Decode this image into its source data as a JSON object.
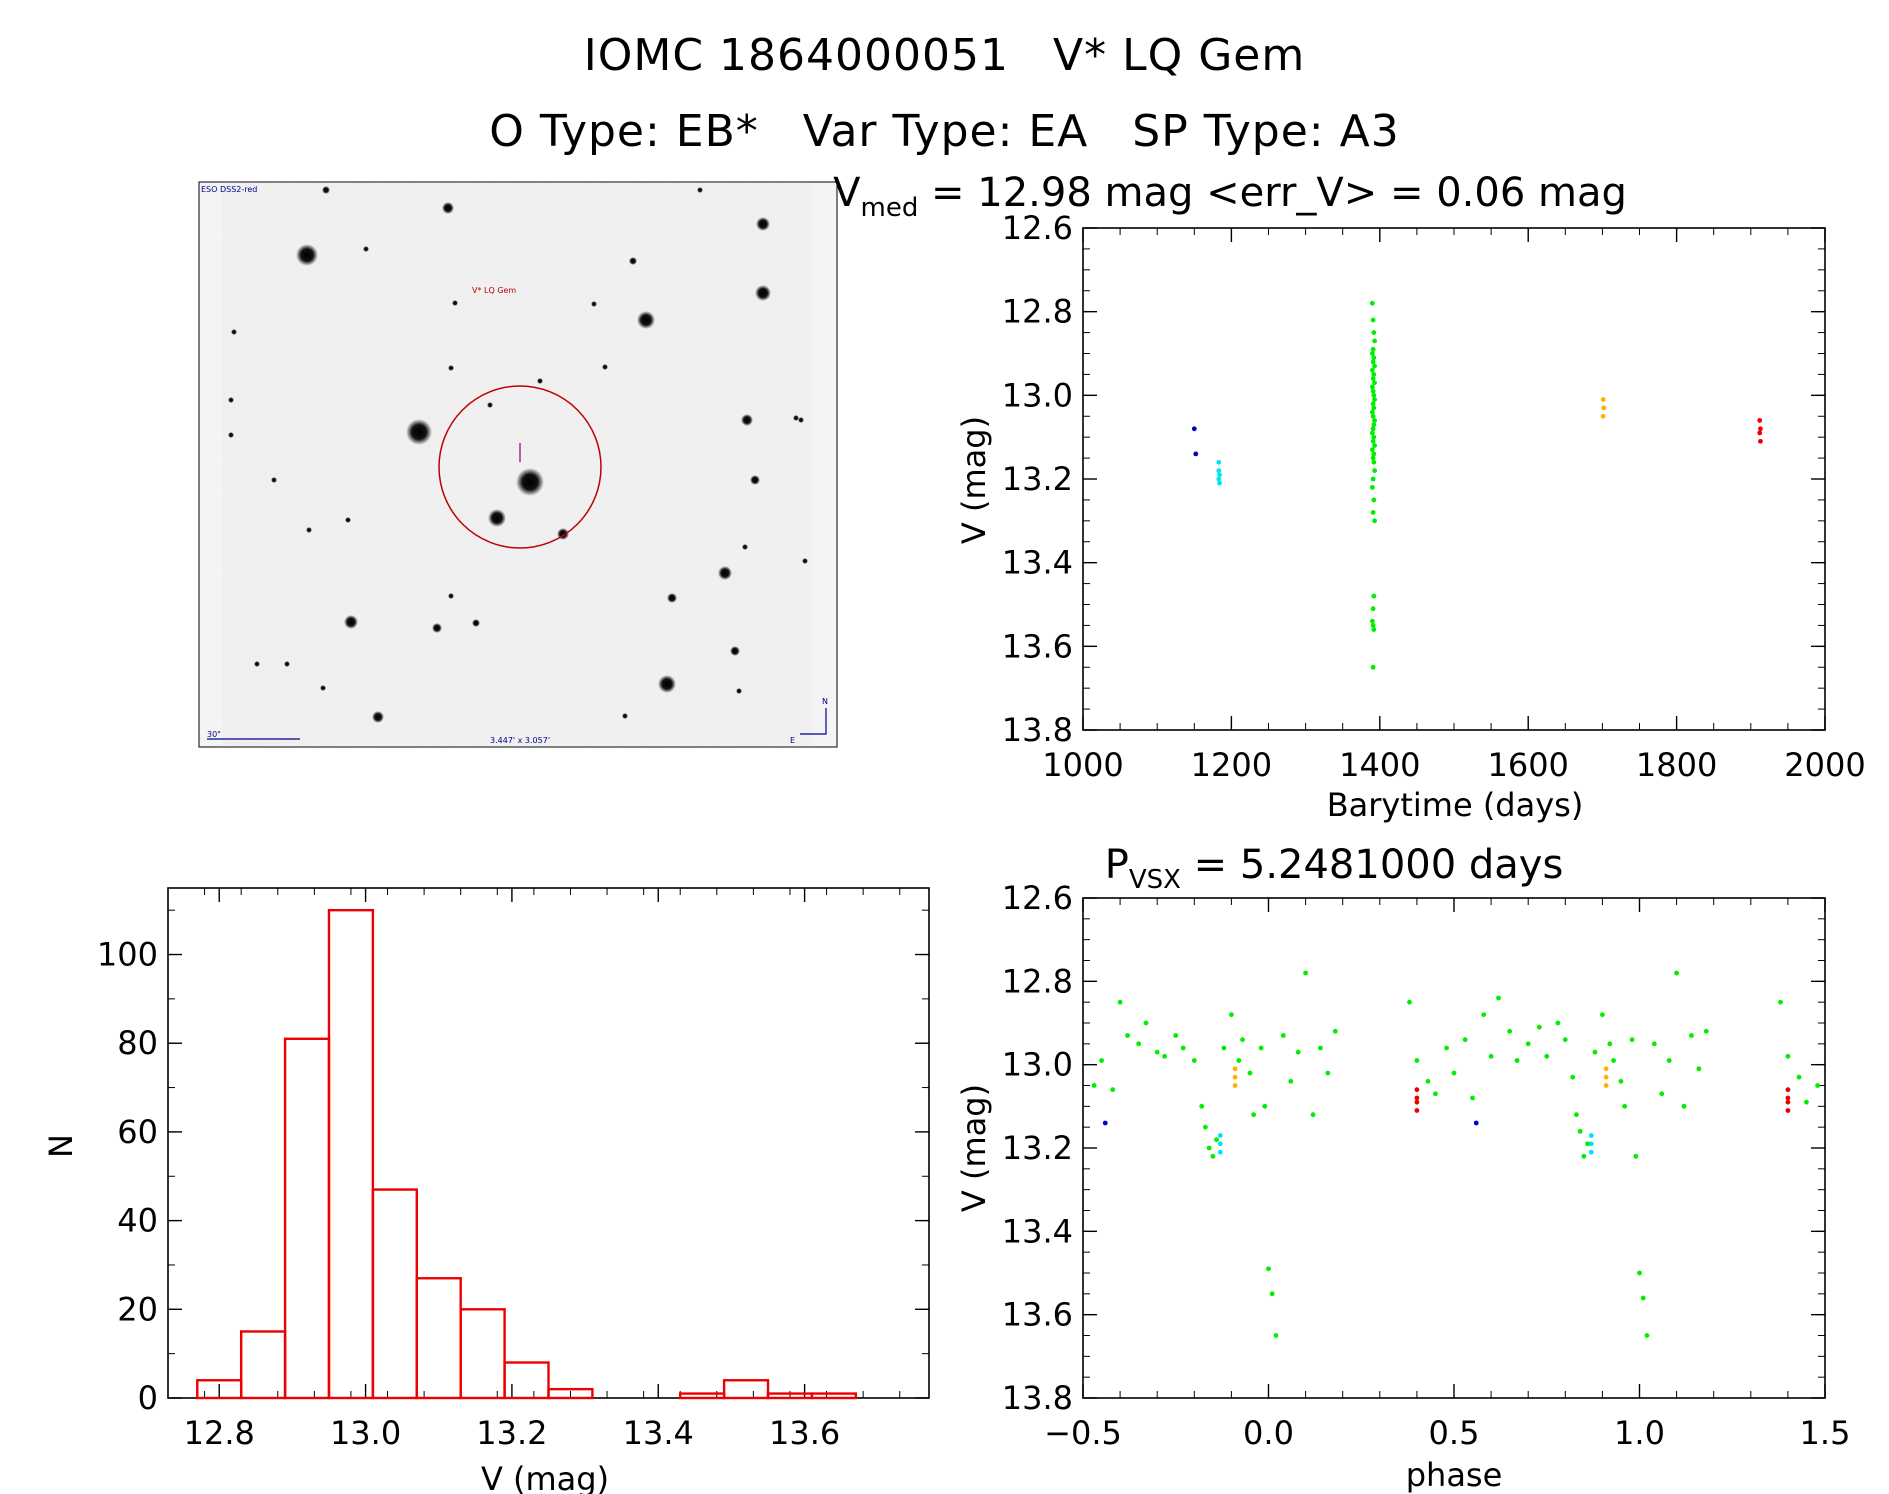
{
  "header": {
    "object_id": "IOMC 1864000051",
    "star_name": "V* LQ Gem",
    "o_type": "O Type: EB*",
    "var_type": "Var Type: EA",
    "sp_type": "SP Type: A3"
  },
  "finder_chart": {
    "survey": "ESO DSS2-red",
    "target_label": "V* LQ Gem",
    "scale_label": "30\"",
    "field_size": "3.447' x 3.057'",
    "north": "N",
    "east": "E",
    "colors": {
      "circle": "#c00000",
      "target_label": "#c00000",
      "annotations": "#00008b"
    }
  },
  "light_curve": {
    "title_main": "V",
    "title_sub": "med",
    "title_rest": " = 12.98 mag <err_V> = 0.06 mag",
    "xlabel": "Barytime (days)",
    "ylabel": "V (mag)"
  },
  "phase_plot": {
    "title_main": "P",
    "title_sub": "VSX",
    "title_rest": " = 5.2481000 days",
    "xlabel": "phase",
    "ylabel": "V (mag)"
  },
  "histogram": {
    "xlabel": "V (mag)",
    "ylabel": "N"
  },
  "chart_data": [
    {
      "type": "scatter",
      "name": "light_curve",
      "xlim": [
        1000,
        2000
      ],
      "ylim": [
        13.8,
        12.6
      ],
      "xticks": [
        1000,
        1200,
        1400,
        1600,
        1800,
        2000
      ],
      "xtick_labels": [
        "1000",
        "1200",
        "1400",
        "1600",
        "1800",
        "2000"
      ],
      "yticks": [
        12.6,
        12.8,
        13.0,
        13.2,
        13.4,
        13.6,
        13.8
      ],
      "ytick_labels": [
        "12.6",
        "12.8",
        "13.0",
        "13.2",
        "13.4",
        "13.6",
        "13.8"
      ],
      "series": [
        {
          "name": "season1",
          "color": "#0000cc",
          "x": [
            1150,
            1152
          ],
          "y": [
            13.08,
            13.14
          ]
        },
        {
          "name": "season2",
          "color": "#00e5ee",
          "x": [
            1183,
            1183,
            1184,
            1183,
            1184
          ],
          "y": [
            13.16,
            13.18,
            13.19,
            13.2,
            13.21
          ]
        },
        {
          "name": "season3",
          "color": "#00ee00",
          "x": [
            1390,
            1391,
            1392,
            1393,
            1391,
            1390,
            1392,
            1391,
            1393,
            1390,
            1392,
            1391,
            1393,
            1390,
            1391,
            1392,
            1393,
            1391,
            1392,
            1390,
            1391,
            1393,
            1392,
            1391,
            1390,
            1392,
            1391,
            1393,
            1390,
            1392,
            1391,
            1392,
            1393,
            1391,
            1390,
            1392,
            1391,
            1393,
            1392,
            1391,
            1390,
            1391,
            1392,
            1391
          ],
          "y": [
            12.78,
            12.82,
            12.85,
            12.87,
            12.89,
            12.9,
            12.91,
            12.92,
            12.93,
            12.94,
            12.95,
            12.96,
            12.97,
            12.98,
            12.99,
            13.0,
            13.01,
            13.02,
            13.03,
            13.04,
            13.05,
            13.06,
            13.07,
            13.08,
            13.09,
            13.1,
            13.11,
            13.12,
            13.13,
            13.14,
            13.15,
            13.16,
            13.18,
            13.2,
            13.22,
            13.25,
            13.28,
            13.3,
            13.48,
            13.51,
            13.54,
            13.55,
            13.56,
            13.65
          ]
        },
        {
          "name": "season4",
          "color": "#ffb000",
          "x": [
            1701,
            1702,
            1701
          ],
          "y": [
            13.01,
            13.03,
            13.05
          ]
        },
        {
          "name": "season5",
          "color": "#ee0000",
          "x": [
            1912,
            1913,
            1912,
            1913
          ],
          "y": [
            13.06,
            13.08,
            13.09,
            13.11
          ]
        }
      ]
    },
    {
      "type": "histogram",
      "name": "magnitude_histogram",
      "xlim": [
        12.73,
        13.77
      ],
      "ylim": [
        0,
        115
      ],
      "xticks": [
        12.8,
        13.0,
        13.2,
        13.4,
        13.6
      ],
      "xtick_labels": [
        "12.8",
        "13.0",
        "13.2",
        "13.4",
        "13.6"
      ],
      "yticks": [
        0,
        20,
        40,
        60,
        80,
        100
      ],
      "ytick_labels": [
        "0",
        "20",
        "40",
        "60",
        "80",
        "100"
      ],
      "bin_edges": [
        12.77,
        12.83,
        12.89,
        12.95,
        13.01,
        13.07,
        13.13,
        13.19,
        13.25,
        13.31,
        13.37,
        13.43,
        13.49,
        13.55,
        13.61,
        13.67
      ],
      "counts": [
        4,
        15,
        81,
        110,
        47,
        27,
        20,
        8,
        2,
        0,
        0,
        1,
        4,
        1,
        1
      ],
      "color": "#ee0000"
    },
    {
      "type": "scatter",
      "name": "phased_light_curve",
      "period_days": 5.2481,
      "xlim": [
        -0.5,
        1.5
      ],
      "ylim": [
        13.8,
        12.6
      ],
      "xticks": [
        -0.5,
        0.0,
        0.5,
        1.0,
        1.5
      ],
      "xtick_labels": [
        "−0.5",
        "0.0",
        "0.5",
        "1.0",
        "1.5"
      ],
      "yticks": [
        12.6,
        12.8,
        13.0,
        13.2,
        13.4,
        13.6,
        13.8
      ],
      "ytick_labels": [
        "12.6",
        "12.8",
        "13.0",
        "13.2",
        "13.4",
        "13.6",
        "13.8"
      ],
      "series": [
        {
          "name": "season1",
          "color": "#0000cc",
          "x": [
            -0.44,
            0.56
          ],
          "y": [
            13.14,
            13.14
          ]
        },
        {
          "name": "season2",
          "color": "#00e5ee",
          "x": [
            -0.13,
            -0.13,
            -0.13,
            0.87,
            0.87,
            0.87
          ],
          "y": [
            13.17,
            13.19,
            13.21,
            13.17,
            13.19,
            13.21
          ]
        },
        {
          "name": "season3",
          "color": "#00ee00",
          "x": [
            -0.47,
            -0.45,
            -0.42,
            -0.4,
            -0.38,
            -0.35,
            -0.33,
            -0.3,
            -0.28,
            -0.25,
            -0.23,
            -0.2,
            -0.18,
            -0.17,
            -0.16,
            -0.15,
            -0.14,
            -0.12,
            -0.1,
            -0.08,
            -0.07,
            -0.05,
            -0.04,
            -0.02,
            -0.01,
            0.0,
            0.01,
            0.02,
            0.04,
            0.06,
            0.08,
            0.1,
            0.12,
            0.14,
            0.16,
            0.18,
            0.38,
            0.4,
            0.43,
            0.45,
            0.48,
            0.5,
            0.53,
            0.55,
            0.58,
            0.6,
            0.62,
            0.65,
            0.67,
            0.7,
            0.73,
            0.75,
            0.78,
            0.8,
            0.82,
            0.83,
            0.84,
            0.85,
            0.86,
            0.88,
            0.9,
            0.92,
            0.93,
            0.95,
            0.96,
            0.98,
            0.99,
            1.0,
            1.01,
            1.02,
            1.04,
            1.06,
            1.08,
            1.1,
            1.12,
            1.14,
            1.16,
            1.18,
            1.38,
            1.4,
            1.43,
            1.45,
            1.48
          ],
          "y": [
            13.05,
            12.99,
            13.06,
            12.85,
            12.93,
            12.95,
            12.9,
            12.97,
            12.98,
            12.93,
            12.96,
            12.99,
            13.1,
            13.15,
            13.2,
            13.22,
            13.18,
            12.96,
            12.88,
            12.99,
            12.94,
            13.02,
            13.12,
            12.96,
            13.1,
            13.49,
            13.55,
            13.65,
            12.93,
            13.04,
            12.97,
            12.78,
            13.12,
            12.96,
            13.02,
            12.92,
            12.85,
            12.99,
            13.04,
            13.07,
            12.96,
            13.02,
            12.94,
            13.08,
            12.88,
            12.98,
            12.84,
            12.92,
            12.99,
            12.95,
            12.91,
            12.98,
            12.9,
            12.94,
            13.03,
            13.12,
            13.16,
            13.22,
            13.19,
            12.97,
            12.88,
            12.95,
            12.99,
            13.04,
            13.1,
            12.94,
            13.22,
            13.5,
            13.56,
            13.65,
            12.95,
            13.07,
            12.99,
            12.78,
            13.1,
            12.93,
            13.01,
            12.92,
            12.85,
            12.98,
            13.03,
            13.09,
            13.05
          ]
        },
        {
          "name": "season4",
          "color": "#ffb000",
          "x": [
            -0.09,
            -0.09,
            -0.09,
            0.91,
            0.91,
            0.91
          ],
          "y": [
            13.01,
            13.03,
            13.05,
            13.01,
            13.03,
            13.05
          ]
        },
        {
          "name": "season5",
          "color": "#ee0000",
          "x": [
            0.4,
            0.4,
            0.4,
            0.4,
            1.4,
            1.4,
            1.4,
            1.4
          ],
          "y": [
            13.06,
            13.08,
            13.09,
            13.11,
            13.06,
            13.08,
            13.09,
            13.11
          ]
        }
      ]
    }
  ]
}
